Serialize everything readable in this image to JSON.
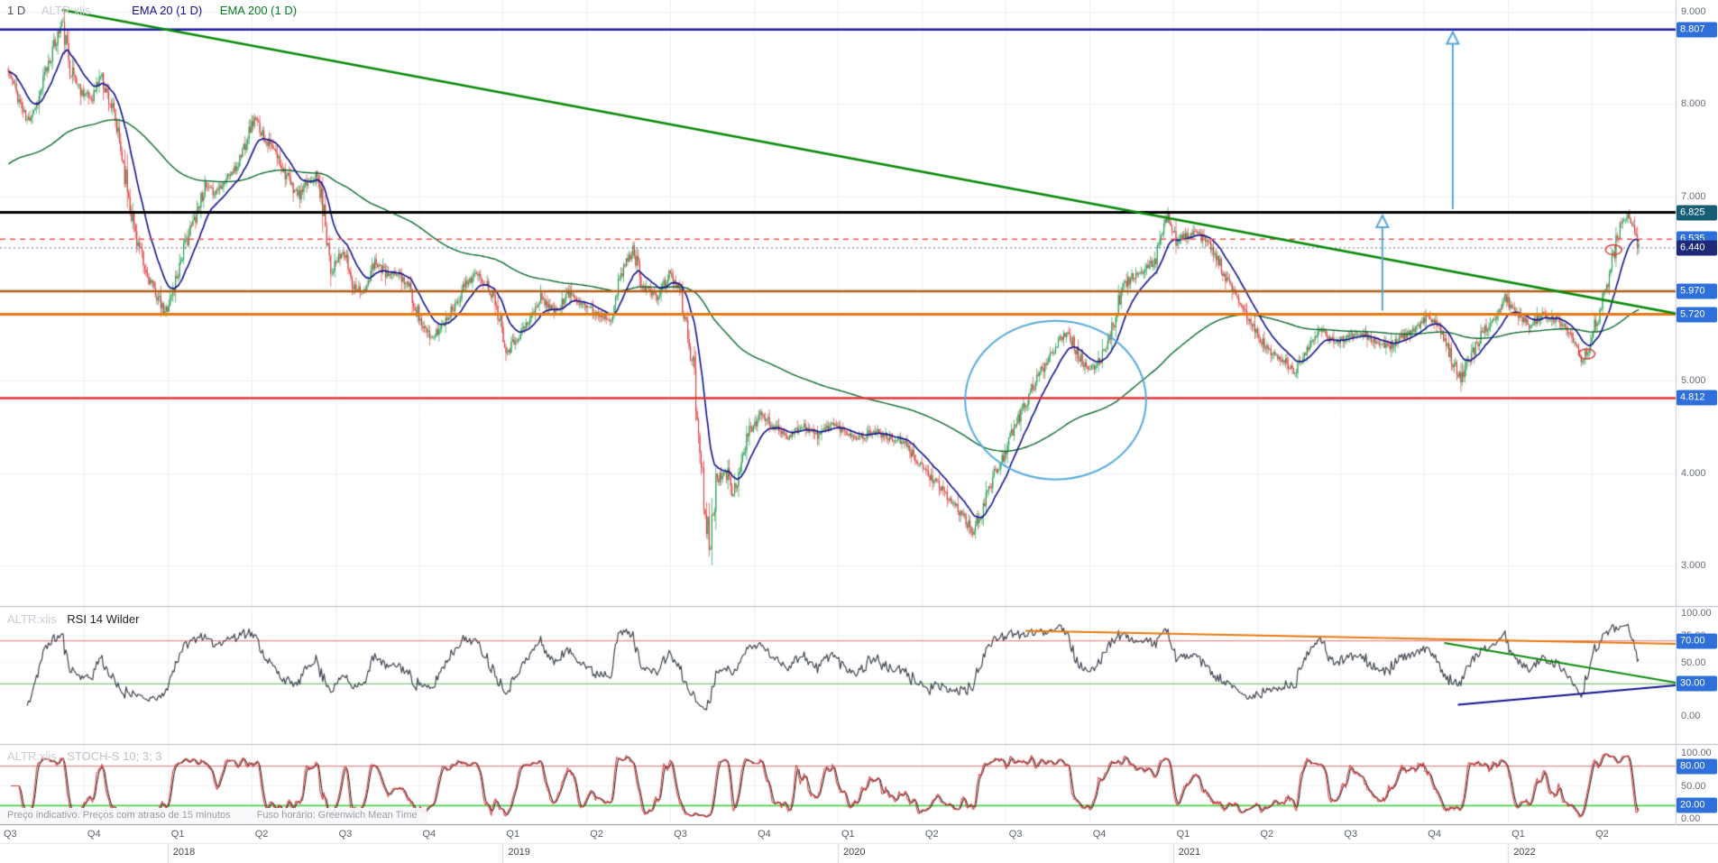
{
  "legend": {
    "timeframe": "1 D",
    "symbol": "ALTR:xlis",
    "ema20": "EMA 20  (1 D)",
    "ema200": "EMA 200  (1 D)"
  },
  "footer": {
    "disclaimer": "Preço indicativo. Preços com atraso de 15 minutos",
    "timezone": "Fuso horário: Greenwich Mean Time"
  },
  "chart_data": {
    "type": "candlestick",
    "symbol": "ALTR:xlis",
    "timeframe": "1 D",
    "x_axis": {
      "quarters": [
        "Q3",
        "Q4",
        "Q1",
        "Q2",
        "Q3",
        "Q4",
        "Q1",
        "Q2",
        "Q3",
        "Q4",
        "Q1",
        "Q2",
        "Q3",
        "Q4",
        "Q1",
        "Q2",
        "Q3",
        "Q4",
        "Q1",
        "Q2"
      ],
      "years": [
        {
          "label": "2018",
          "q": 2
        },
        {
          "label": "2019",
          "q": 6
        },
        {
          "label": "2020",
          "q": 10
        },
        {
          "label": "2021",
          "q": 14
        },
        {
          "label": "2022",
          "q": 18
        }
      ]
    },
    "y_axis": {
      "ticks": [
        "9.000",
        "8.000",
        "7.000",
        "6.000",
        "5.000",
        "4.000",
        "3.000"
      ],
      "tick_values": [
        9,
        8,
        7,
        6,
        5,
        4,
        3
      ],
      "range": [
        2.56,
        9.13
      ]
    },
    "series": {
      "bars": 1220,
      "noise_seed": 11,
      "noise_base": 0.032,
      "up_color": "#1f9d4f",
      "down_color": "#df3a3a",
      "close_anchors": [
        [
          0.005,
          8.35
        ],
        [
          0.01,
          8.12
        ],
        [
          0.016,
          7.8
        ],
        [
          0.023,
          8.05
        ],
        [
          0.029,
          8.45
        ],
        [
          0.037,
          8.88
        ],
        [
          0.042,
          8.4
        ],
        [
          0.048,
          8.15
        ],
        [
          0.055,
          8.05
        ],
        [
          0.06,
          8.32
        ],
        [
          0.067,
          7.95
        ],
        [
          0.073,
          7.42
        ],
        [
          0.08,
          6.68
        ],
        [
          0.086,
          6.2
        ],
        [
          0.093,
          5.95
        ],
        [
          0.098,
          5.72
        ],
        [
          0.103,
          5.96
        ],
        [
          0.109,
          6.4
        ],
        [
          0.115,
          6.7
        ],
        [
          0.122,
          7.1
        ],
        [
          0.128,
          7.04
        ],
        [
          0.135,
          7.2
        ],
        [
          0.141,
          7.3
        ],
        [
          0.148,
          7.68
        ],
        [
          0.152,
          7.84
        ],
        [
          0.158,
          7.64
        ],
        [
          0.164,
          7.48
        ],
        [
          0.169,
          7.3
        ],
        [
          0.174,
          7.1
        ],
        [
          0.179,
          7.0
        ],
        [
          0.184,
          7.16
        ],
        [
          0.189,
          7.24
        ],
        [
          0.194,
          6.76
        ],
        [
          0.198,
          6.2
        ],
        [
          0.205,
          6.4
        ],
        [
          0.211,
          6.04
        ],
        [
          0.218,
          5.96
        ],
        [
          0.224,
          6.3
        ],
        [
          0.231,
          6.14
        ],
        [
          0.238,
          6.16
        ],
        [
          0.244,
          6.02
        ],
        [
          0.251,
          5.64
        ],
        [
          0.257,
          5.44
        ],
        [
          0.264,
          5.6
        ],
        [
          0.27,
          5.78
        ],
        [
          0.277,
          6.02
        ],
        [
          0.283,
          6.16
        ],
        [
          0.29,
          6.06
        ],
        [
          0.296,
          5.86
        ],
        [
          0.303,
          5.32
        ],
        [
          0.308,
          5.46
        ],
        [
          0.315,
          5.62
        ],
        [
          0.323,
          5.9
        ],
        [
          0.331,
          5.75
        ],
        [
          0.34,
          5.95
        ],
        [
          0.348,
          5.84
        ],
        [
          0.355,
          5.74
        ],
        [
          0.364,
          5.67
        ],
        [
          0.372,
          6.22
        ],
        [
          0.378,
          6.42
        ],
        [
          0.384,
          6.03
        ],
        [
          0.392,
          5.9
        ],
        [
          0.4,
          6.16
        ],
        [
          0.406,
          5.95
        ],
        [
          0.413,
          5.25
        ],
        [
          0.418,
          4.2
        ],
        [
          0.423,
          3.2
        ],
        [
          0.427,
          3.88
        ],
        [
          0.433,
          4.08
        ],
        [
          0.437,
          3.7
        ],
        [
          0.442,
          4.14
        ],
        [
          0.447,
          4.44
        ],
        [
          0.454,
          4.64
        ],
        [
          0.462,
          4.5
        ],
        [
          0.471,
          4.4
        ],
        [
          0.479,
          4.52
        ],
        [
          0.488,
          4.4
        ],
        [
          0.496,
          4.54
        ],
        [
          0.505,
          4.44
        ],
        [
          0.513,
          4.38
        ],
        [
          0.522,
          4.46
        ],
        [
          0.53,
          4.38
        ],
        [
          0.539,
          4.33
        ],
        [
          0.547,
          4.15
        ],
        [
          0.556,
          3.94
        ],
        [
          0.564,
          3.77
        ],
        [
          0.573,
          3.58
        ],
        [
          0.581,
          3.34
        ],
        [
          0.588,
          3.72
        ],
        [
          0.594,
          4.0
        ],
        [
          0.601,
          4.28
        ],
        [
          0.609,
          4.64
        ],
        [
          0.617,
          4.95
        ],
        [
          0.624,
          5.2
        ],
        [
          0.631,
          5.42
        ],
        [
          0.637,
          5.55
        ],
        [
          0.643,
          5.3
        ],
        [
          0.65,
          5.08
        ],
        [
          0.656,
          5.22
        ],
        [
          0.663,
          5.52
        ],
        [
          0.67,
          6.02
        ],
        [
          0.676,
          6.13
        ],
        [
          0.683,
          6.18
        ],
        [
          0.689,
          6.3
        ],
        [
          0.694,
          6.62
        ],
        [
          0.698,
          6.8
        ],
        [
          0.702,
          6.5
        ],
        [
          0.707,
          6.57
        ],
        [
          0.714,
          6.6
        ],
        [
          0.721,
          6.49
        ],
        [
          0.727,
          6.3
        ],
        [
          0.735,
          5.98
        ],
        [
          0.743,
          5.74
        ],
        [
          0.751,
          5.48
        ],
        [
          0.758,
          5.3
        ],
        [
          0.766,
          5.22
        ],
        [
          0.773,
          5.08
        ],
        [
          0.781,
          5.4
        ],
        [
          0.789,
          5.54
        ],
        [
          0.796,
          5.42
        ],
        [
          0.804,
          5.47
        ],
        [
          0.812,
          5.54
        ],
        [
          0.82,
          5.43
        ],
        [
          0.828,
          5.36
        ],
        [
          0.836,
          5.46
        ],
        [
          0.844,
          5.54
        ],
        [
          0.851,
          5.68
        ],
        [
          0.859,
          5.6
        ],
        [
          0.867,
          5.22
        ],
        [
          0.872,
          5.04
        ],
        [
          0.879,
          5.3
        ],
        [
          0.885,
          5.52
        ],
        [
          0.892,
          5.68
        ],
        [
          0.898,
          5.9
        ],
        [
          0.905,
          5.72
        ],
        [
          0.913,
          5.6
        ],
        [
          0.921,
          5.72
        ],
        [
          0.929,
          5.66
        ],
        [
          0.936,
          5.52
        ],
        [
          0.943,
          5.22
        ],
        [
          0.948,
          5.34
        ],
        [
          0.953,
          5.66
        ],
        [
          0.959,
          6.03
        ],
        [
          0.963,
          6.38
        ],
        [
          0.968,
          6.76
        ],
        [
          0.972,
          6.79
        ],
        [
          0.975,
          6.58
        ],
        [
          0.978,
          6.44
        ]
      ]
    },
    "overlays": {
      "ema20": {
        "label": "EMA 20  (1 D)",
        "period": 20,
        "color": "#11118f"
      },
      "ema200": {
        "label": "EMA 200  (1 D)",
        "period": 200,
        "color": "#0b6b2d",
        "init": 7.35
      }
    },
    "price_levels": [
      {
        "value": 8.807,
        "label": "8.807",
        "line_color": "#1b1ba0",
        "badge_color": "#2e6fd9",
        "width": 2.5,
        "dash": null
      },
      {
        "value": 6.825,
        "label": "6.825",
        "line_color": "#000000",
        "badge_color": "#155e75",
        "width": 3,
        "dash": null
      },
      {
        "value": 6.535,
        "label": "6.535",
        "line_color": "#ef5350",
        "badge_color": "#2e6fd9",
        "width": 1.5,
        "dash": [
          6,
          5
        ]
      },
      {
        "value": 5.97,
        "label": "5.970",
        "line_color": "#b05e14",
        "badge_color": "#2e6fd9",
        "width": 2.5,
        "dash": null
      },
      {
        "value": 5.72,
        "label": "5.720",
        "line_color": "#e8780f",
        "badge_color": "#2e6fd9",
        "width": 3,
        "dash": null
      },
      {
        "value": 4.812,
        "label": "4.812",
        "line_color": "#e23535",
        "badge_color": "#2e6fd9",
        "width": 2.5,
        "dash": null
      }
    ],
    "last_price": {
      "value": 6.44,
      "label": "6.440",
      "badge_color": "#1e2a78",
      "line_color": "#3a4a8c"
    },
    "trendlines": [
      {
        "points": [
          [
            0.037,
            9.02
          ],
          [
            1.026,
            5.64
          ]
        ],
        "color": "#0a8a0a",
        "width": 2.5
      }
    ],
    "annotations": {
      "ellipse": {
        "t": 0.63,
        "price": 4.79,
        "rt": 0.054,
        "rprice": 0.86,
        "color": "#56aadd",
        "width": 2
      },
      "mini_ellipses": [
        {
          "t": 0.947,
          "price": 5.29
        },
        {
          "t": 0.963,
          "price": 6.42
        }
      ],
      "mini_ellipse_color": "#e23535",
      "arrows": [
        {
          "t": 0.825,
          "from_price": 5.76,
          "to_price": 6.79
        },
        {
          "t": 0.867,
          "from_price": 6.86,
          "to_price": 8.78
        }
      ],
      "arrow_color": "#55a6d9"
    },
    "rsi_panel": {
      "symbol": "ALTR:xlis",
      "label": "RSI 14 Wilder",
      "period": 14,
      "range": [
        0,
        100
      ],
      "line_color": "#3f4450",
      "levels": [
        {
          "value": 70,
          "color": "#e57373",
          "badge": "70.00"
        },
        {
          "value": 30,
          "color": "#5cb85c",
          "badge": "30.00"
        }
      ],
      "ticks": [
        "100.00",
        "75.00",
        "50.00",
        "0.00"
      ],
      "tick_values": [
        100,
        75,
        50,
        0
      ],
      "badge_color": "#2e6fd9",
      "trendlines": [
        {
          "points": [
            [
              0.612,
              79.5
            ],
            [
              1.02,
              66.5
            ]
          ],
          "color": "#e8780f",
          "width": 2
        },
        {
          "points": [
            [
              0.862,
              68.0
            ],
            [
              1.01,
              28.5
            ]
          ],
          "color": "#0a8a0a",
          "width": 2
        },
        {
          "points": [
            [
              0.87,
              10.5
            ],
            [
              1.01,
              30.0
            ]
          ],
          "color": "#11118f",
          "width": 2
        }
      ]
    },
    "stoch_panel": {
      "symbol": "ALTR:xlis",
      "label": "STOCH-S 10; 3; 3",
      "k_period": 10,
      "k_smooth": 3,
      "d_period": 3,
      "range": [
        0,
        100
      ],
      "k_color": "#e23b3b",
      "d_color": "#2b2b2b",
      "levels": [
        {
          "value": 80,
          "color": "#e57373",
          "badge": "80.00"
        },
        {
          "value": 20,
          "color": "#49d149",
          "badge": "20.00"
        }
      ],
      "ticks": [
        "100.00",
        "50.00",
        "0.00"
      ],
      "tick_values": [
        100,
        50,
        0
      ],
      "badge_color": "#2e6fd9"
    }
  }
}
